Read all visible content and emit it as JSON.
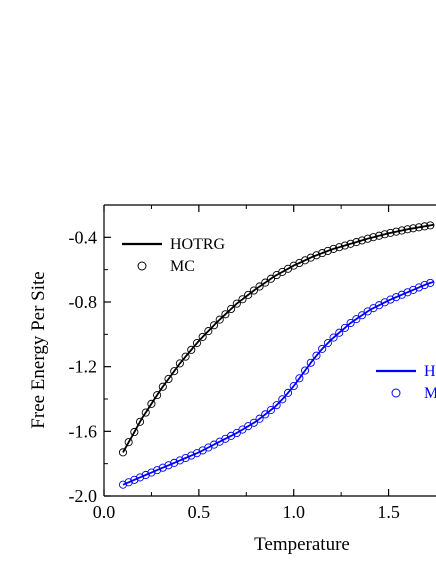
{
  "chart_data": {
    "type": "line",
    "title": "",
    "xlabel": "Temperature",
    "ylabel": "Free Energy Per Site",
    "xlim": [
      0.0,
      1.75
    ],
    "ylim": [
      -2.0,
      -0.2
    ],
    "grid": false,
    "x_ticks": [
      "0.0",
      "0.5",
      "1.0",
      "1.5"
    ],
    "y_ticks": [
      "-0.4",
      "-0.8",
      "-1.2",
      "-1.6",
      "-2.0"
    ],
    "legends": [
      {
        "placement": "top-left",
        "entries": [
          {
            "label": "HOTRG",
            "style": "line",
            "color": "#000000"
          },
          {
            "label": "MC",
            "style": "open-circle",
            "color": "#000000"
          }
        ]
      },
      {
        "placement": "right",
        "entries": [
          {
            "label": "H",
            "style": "line",
            "color": "#0000ff"
          },
          {
            "label": "M",
            "style": "open-circle",
            "color": "#0000ff"
          }
        ]
      }
    ],
    "series": [
      {
        "color": "#000000",
        "x": [
          0.1,
          0.2,
          0.3,
          0.4,
          0.5,
          0.6,
          0.7,
          0.8,
          0.9,
          1.0,
          1.1,
          1.2,
          1.3,
          1.4,
          1.5,
          1.6,
          1.7,
          1.75
        ],
        "y": [
          -1.73,
          -1.52,
          -1.34,
          -1.18,
          -1.04,
          -0.92,
          -0.81,
          -0.72,
          -0.64,
          -0.575,
          -0.52,
          -0.475,
          -0.44,
          -0.405,
          -0.375,
          -0.35,
          -0.33,
          -0.32
        ]
      },
      {
        "color": "#0000ff",
        "x": [
          0.1,
          0.2,
          0.3,
          0.4,
          0.5,
          0.6,
          0.7,
          0.8,
          0.9,
          0.95,
          1.0,
          1.05,
          1.1,
          1.15,
          1.2,
          1.3,
          1.4,
          1.5,
          1.6,
          1.7,
          1.75
        ],
        "y": [
          -1.93,
          -1.88,
          -1.83,
          -1.78,
          -1.73,
          -1.67,
          -1.61,
          -1.54,
          -1.45,
          -1.39,
          -1.32,
          -1.24,
          -1.16,
          -1.09,
          -1.03,
          -0.93,
          -0.85,
          -0.79,
          -0.74,
          -0.69,
          -0.67
        ]
      }
    ]
  }
}
